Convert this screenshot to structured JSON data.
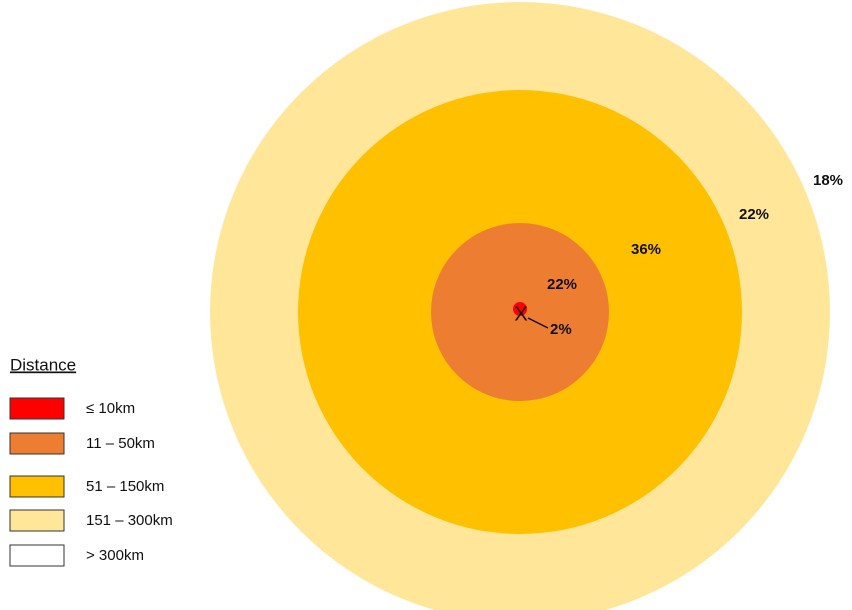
{
  "legend": {
    "title": "Distance",
    "items": [
      {
        "label": "≤ 10km",
        "color": "#ff0000"
      },
      {
        "label": "11 – 50km",
        "color": "#ed7d31"
      },
      {
        "label": "51 – 150km",
        "color": "#ffc000"
      },
      {
        "label": "151 – 300km",
        "color": "#ffe699"
      },
      {
        "label": "> 300km",
        "color": "#ffffff"
      }
    ]
  },
  "center_marker": "X",
  "shares": [
    "2%",
    "22%",
    "36%",
    "22%",
    "18%"
  ]
}
